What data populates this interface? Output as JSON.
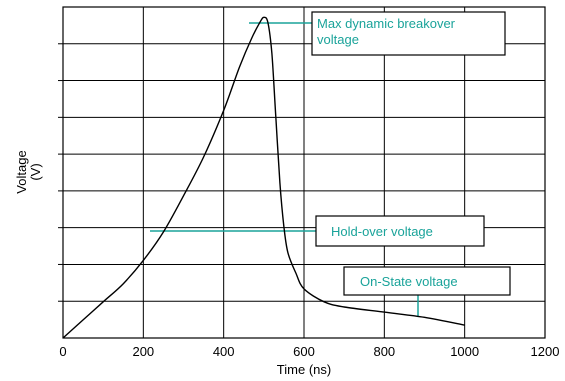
{
  "chart_data": {
    "type": "line",
    "xlabel": "Time (ns)",
    "ylabel_line1": "Voltage",
    "ylabel_line2": "(V)",
    "xlim": [
      0,
      1200
    ],
    "x_ticks": [
      0,
      200,
      400,
      600,
      800,
      1000,
      1200
    ],
    "y_tick_labels_shown": false,
    "grid": true,
    "series": [
      {
        "x": [
          0,
          50,
          100,
          150,
          200,
          250,
          300,
          350,
          400,
          440,
          470,
          490,
          500,
          510,
          520,
          530,
          540,
          550,
          560,
          580,
          600,
          650,
          700,
          800,
          900,
          1000
        ],
        "y": [
          0.0,
          0.7,
          1.4,
          2.1,
          3.0,
          4.1,
          5.5,
          7.0,
          8.8,
          10.5,
          11.6,
          12.2,
          12.4,
          12.2,
          11.0,
          8.5,
          6.0,
          4.3,
          3.3,
          2.5,
          1.9,
          1.4,
          1.2,
          1.0,
          0.8,
          0.5
        ]
      }
    ],
    "annotations": [
      {
        "line1": "Max dynamic breakover",
        "line2": "voltage",
        "color": "#1aa39a"
      },
      {
        "line1": "Hold-over voltage",
        "line2": "",
        "color": "#1aa39a"
      },
      {
        "line1": "On-State voltage",
        "line2": "",
        "color": "#1aa39a"
      }
    ]
  }
}
